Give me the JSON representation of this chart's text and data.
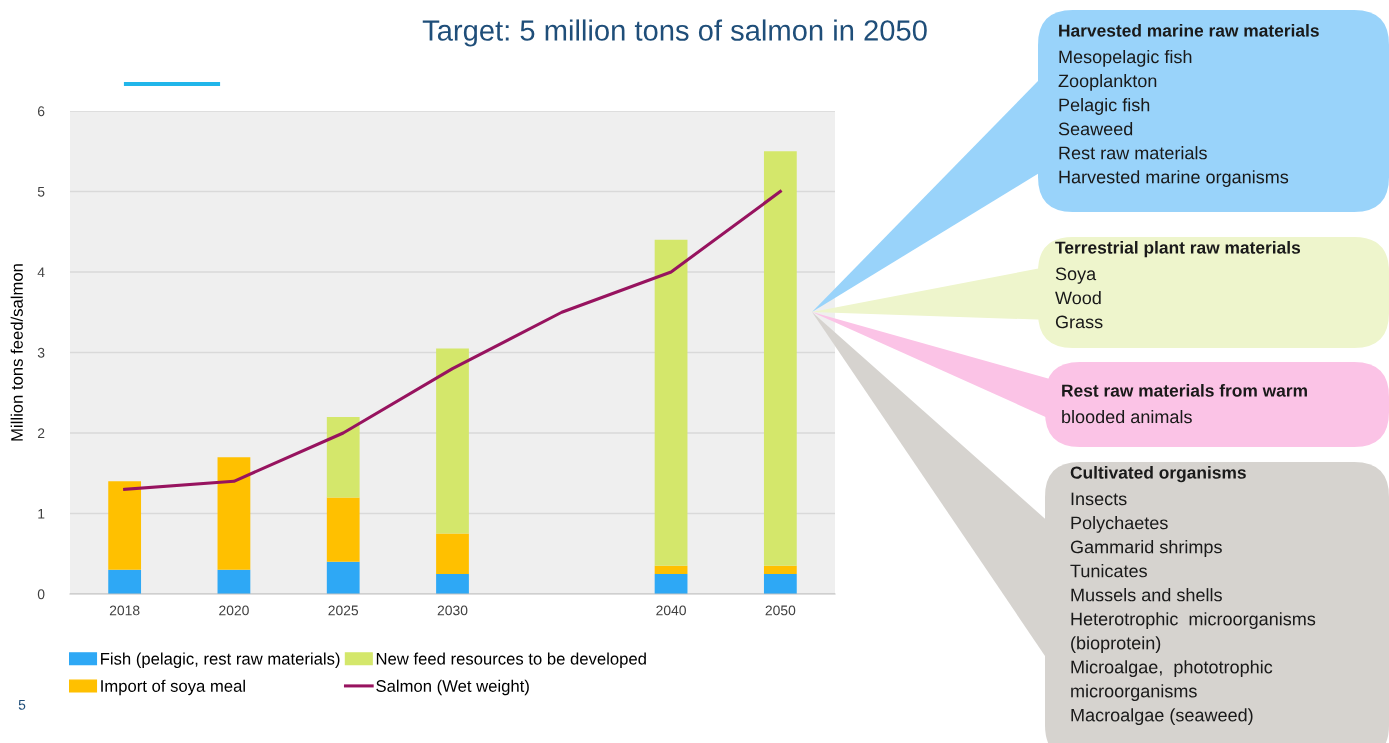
{
  "chart_data": {
    "type": "bar",
    "stacked": true,
    "title": "Target: 5 million tons of salmon in 2050",
    "ylabel": "Million tons feed/salmon",
    "categories": [
      "2018",
      "2020",
      "2025",
      "2030",
      null,
      "2040",
      "2050"
    ],
    "series": [
      {
        "name": "Fish (pelagic, rest raw materials)",
        "color": "#2ea8f5",
        "values": [
          0.3,
          0.3,
          0.4,
          0.25,
          null,
          0.25,
          0.25
        ]
      },
      {
        "name": "Import of soya meal",
        "color": "#ffc000",
        "values": [
          1.1,
          1.4,
          0.8,
          0.5,
          null,
          0.1,
          0.1
        ]
      },
      {
        "name": "New feed resources to be developed",
        "color": "#d4e76b",
        "values": [
          0,
          0,
          1.0,
          2.3,
          null,
          4.05,
          5.15
        ]
      },
      {
        "name": "Salmon (Wet weight)",
        "type": "line",
        "color": "#97135f",
        "values": [
          1.3,
          1.4,
          2.0,
          2.8,
          3.5,
          4.0,
          5.0
        ]
      }
    ],
    "ylim": [
      0,
      6
    ],
    "yticks": [
      0,
      1,
      2,
      3,
      4,
      5,
      6
    ],
    "grid": "y",
    "legend": "bottom",
    "marker": "none",
    "line_style": "solid",
    "annotations": [
      "Harvested marine raw materials\nMesopelagic fish\nZooplankton\nPelagic fish\nSeaweed\nRest raw materials\nHarvested marine organisms",
      "Terrestrial plant raw materials\nSoya\nWood\nGrass",
      "Rest raw materials from warm\nblooded animals",
      "Cultivated organisms\nInsects\nPolychaetes\nGammarid shrimps\nTunicates\nMussels and shells\nHeterotrophic  microorganisms\n(bioprotein)\nMicroalgae,  phototrophic\nmicroorganisms\nMacroalgae (seaweed)",
      "5"
    ]
  }
}
